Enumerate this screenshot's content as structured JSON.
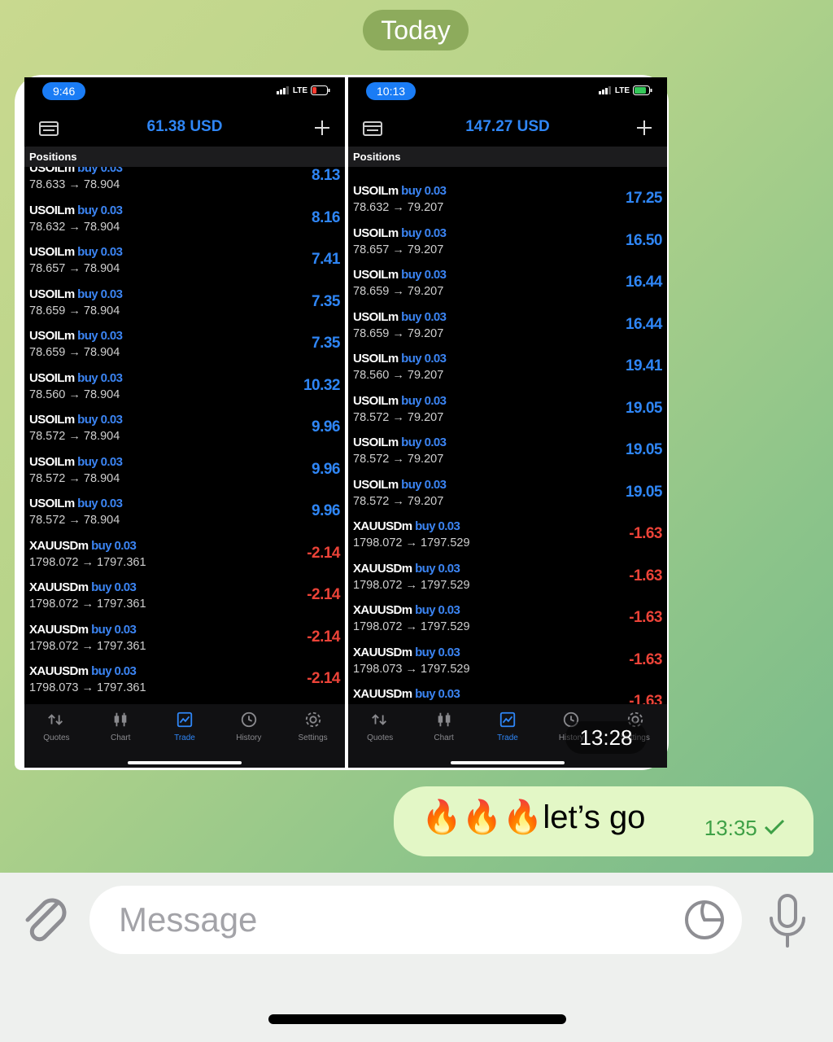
{
  "date_badge": "Today",
  "photo": {
    "time": "13:28",
    "screens": [
      {
        "status_time": "9:46",
        "network": "LTE",
        "balance": "61.38 USD",
        "section": "Positions",
        "row_offset": -9,
        "rows": [
          {
            "symbol": "USOILm",
            "side": "buy 0.03",
            "prices": "78.633 → 78.904",
            "profit": "8.13"
          },
          {
            "symbol": "USOILm",
            "side": "buy 0.03",
            "prices": "78.632 → 78.904",
            "profit": "8.16"
          },
          {
            "symbol": "USOILm",
            "side": "buy 0.03",
            "prices": "78.657 → 78.904",
            "profit": "7.41"
          },
          {
            "symbol": "USOILm",
            "side": "buy 0.03",
            "prices": "78.659 → 78.904",
            "profit": "7.35"
          },
          {
            "symbol": "USOILm",
            "side": "buy 0.03",
            "prices": "78.659 → 78.904",
            "profit": "7.35"
          },
          {
            "symbol": "USOILm",
            "side": "buy 0.03",
            "prices": "78.560 → 78.904",
            "profit": "10.32"
          },
          {
            "symbol": "USOILm",
            "side": "buy 0.03",
            "prices": "78.572 → 78.904",
            "profit": "9.96"
          },
          {
            "symbol": "USOILm",
            "side": "buy 0.03",
            "prices": "78.572 → 78.904",
            "profit": "9.96"
          },
          {
            "symbol": "USOILm",
            "side": "buy 0.03",
            "prices": "78.572 → 78.904",
            "profit": "9.96"
          },
          {
            "symbol": "XAUUSDm",
            "side": "buy 0.03",
            "prices": "1798.072 → 1797.361",
            "profit": "-2.14"
          },
          {
            "symbol": "XAUUSDm",
            "side": "buy 0.03",
            "prices": "1798.072 → 1797.361",
            "profit": "-2.14"
          },
          {
            "symbol": "XAUUSDm",
            "side": "buy 0.03",
            "prices": "1798.072 → 1797.361",
            "profit": "-2.14"
          },
          {
            "symbol": "XAUUSDm",
            "side": "buy 0.03",
            "prices": "1798.073 → 1797.361",
            "profit": "-2.14"
          }
        ],
        "tabs": [
          "Quotes",
          "Chart",
          "Trade",
          "History",
          "Settings"
        ],
        "active_tab": 2
      },
      {
        "status_time": "10:13",
        "network": "LTE",
        "balance": "147.27 USD",
        "section": "Positions",
        "row_offset": 19,
        "rows": [
          {
            "symbol": "USOILm",
            "side": "buy 0.03",
            "prices": "78.632 → 79.207",
            "profit": "17.25"
          },
          {
            "symbol": "USOILm",
            "side": "buy 0.03",
            "prices": "78.657 → 79.207",
            "profit": "16.50"
          },
          {
            "symbol": "USOILm",
            "side": "buy 0.03",
            "prices": "78.659 → 79.207",
            "profit": "16.44"
          },
          {
            "symbol": "USOILm",
            "side": "buy 0.03",
            "prices": "78.659 → 79.207",
            "profit": "16.44"
          },
          {
            "symbol": "USOILm",
            "side": "buy 0.03",
            "prices": "78.560 → 79.207",
            "profit": "19.41"
          },
          {
            "symbol": "USOILm",
            "side": "buy 0.03",
            "prices": "78.572 → 79.207",
            "profit": "19.05"
          },
          {
            "symbol": "USOILm",
            "side": "buy 0.03",
            "prices": "78.572 → 79.207",
            "profit": "19.05"
          },
          {
            "symbol": "USOILm",
            "side": "buy 0.03",
            "prices": "78.572 → 79.207",
            "profit": "19.05"
          },
          {
            "symbol": "XAUUSDm",
            "side": "buy 0.03",
            "prices": "1798.072 → 1797.529",
            "profit": "-1.63"
          },
          {
            "symbol": "XAUUSDm",
            "side": "buy 0.03",
            "prices": "1798.072 → 1797.529",
            "profit": "-1.63"
          },
          {
            "symbol": "XAUUSDm",
            "side": "buy 0.03",
            "prices": "1798.072 → 1797.529",
            "profit": "-1.63"
          },
          {
            "symbol": "XAUUSDm",
            "side": "buy 0.03",
            "prices": "1798.073 → 1797.529",
            "profit": "-1.63"
          },
          {
            "symbol": "XAUUSDm",
            "side": "buy 0.03",
            "profit": "-1.63"
          }
        ],
        "tabs": [
          "Quotes",
          "Chart",
          "Trade",
          "History",
          "Settings"
        ],
        "active_tab": 2
      }
    ]
  },
  "message": {
    "text": "🔥🔥🔥let’s go",
    "time": "13:35"
  },
  "input": {
    "placeholder": "Message"
  }
}
